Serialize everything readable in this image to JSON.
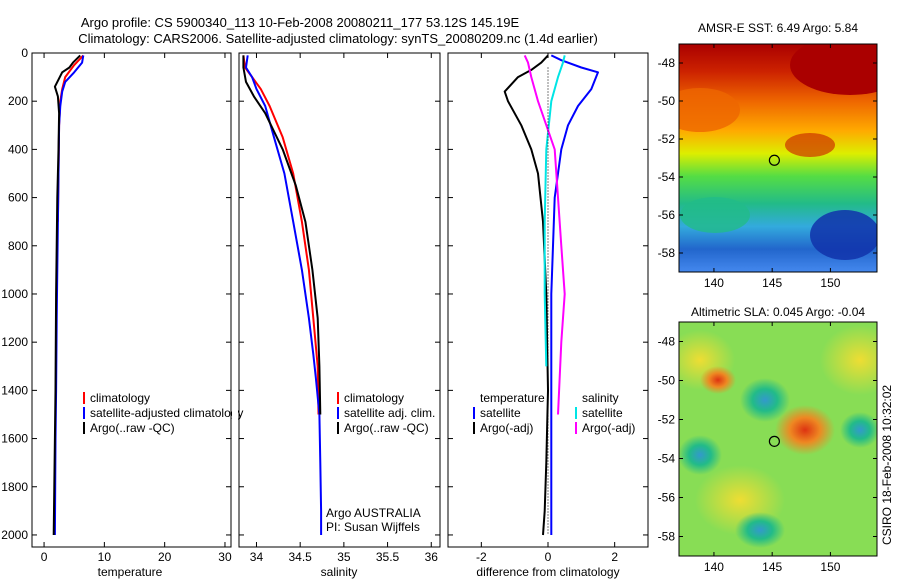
{
  "header": {
    "title1": "Argo profile: CS 5900340_113 10-Feb-2008 20080211_177 53.12S 145.19E",
    "title2": "Climatology: CARS2006. Satellite-adjusted climatology: synTS_20080209.nc (1.4d earlier)"
  },
  "credit": "CSIRO 18-Feb-2008 10:32:02",
  "colors": {
    "climatology": "#ff0000",
    "satellite": "#0000ff",
    "argo": "#000000",
    "salinity_satellite": "#00e5e5",
    "salinity_argo": "#ff00ff"
  },
  "chart_data": [
    {
      "id": "temperature",
      "type": "line",
      "xlabel": "temperature",
      "ylabel": "",
      "xlim": [
        -2,
        31
      ],
      "ylim": [
        2050,
        0
      ],
      "xticks": [
        0,
        10,
        20,
        30
      ],
      "yticks": [
        0,
        200,
        400,
        600,
        800,
        1000,
        1200,
        1400,
        1600,
        1800,
        2000
      ],
      "legend": {
        "placement": "lower-middle",
        "entries": [
          "climatology",
          "satellite-adjusted climatology",
          "Argo(..raw -QC)"
        ]
      },
      "series": [
        {
          "name": "climatology",
          "color": "#ff0000",
          "x": [
            6.5,
            5.0,
            3.5,
            3.0,
            2.7,
            2.5,
            2.4,
            2.3
          ],
          "y": [
            10,
            50,
            100,
            150,
            200,
            300,
            500,
            700
          ]
        },
        {
          "name": "satellite-adjusted climatology",
          "color": "#0000ff",
          "x": [
            6.5,
            6.3,
            5.0,
            3.5,
            3.0,
            2.7,
            2.5,
            2.4,
            2.3,
            2.2,
            2.1,
            2.0,
            1.9,
            1.85,
            1.8
          ],
          "y": [
            10,
            40,
            80,
            120,
            160,
            220,
            300,
            500,
            700,
            900,
            1100,
            1400,
            1600,
            1800,
            2000
          ]
        },
        {
          "name": "Argo(..raw -QC)",
          "color": "#000000",
          "x": [
            6.0,
            4.8,
            4.2,
            3.0,
            1.8,
            2.3,
            2.5,
            2.4,
            2.2,
            2.1,
            2.0,
            1.9,
            1.8,
            1.7,
            1.6
          ],
          "y": [
            10,
            40,
            60,
            80,
            140,
            180,
            250,
            400,
            600,
            800,
            1000,
            1400,
            1600,
            1800,
            2000
          ]
        }
      ]
    },
    {
      "id": "salinity",
      "type": "line",
      "xlabel": "salinity",
      "ylabel": "",
      "xlim": [
        33.8,
        36.1
      ],
      "ylim": [
        2050,
        0
      ],
      "xticks": [
        34,
        34.5,
        35,
        35.5,
        36
      ],
      "xticklabels": [
        "34",
        "34.5",
        "35",
        "35.5",
        "36"
      ],
      "legend": {
        "placement": "lower-right",
        "entries": [
          "climatology",
          "satellite adj. clim.",
          "Argo(..raw -QC)"
        ]
      },
      "annotations": [
        "Argo AUSTRALIA",
        "PI: Susan Wijffels"
      ],
      "series": [
        {
          "name": "climatology",
          "color": "#ff0000",
          "x": [
            33.85,
            33.87,
            33.95,
            34.05,
            34.15,
            34.3,
            34.42,
            34.52,
            34.6,
            34.65,
            34.7,
            34.71
          ],
          "y": [
            10,
            60,
            100,
            150,
            220,
            350,
            500,
            700,
            900,
            1100,
            1300,
            1500
          ]
        },
        {
          "name": "satellite adj. clim.",
          "color": "#0000ff",
          "x": [
            33.9,
            33.88,
            33.95,
            34.0,
            34.1,
            34.2,
            34.32,
            34.42,
            34.52,
            34.6,
            34.65,
            34.68,
            34.72,
            34.73,
            34.74,
            34.74
          ],
          "y": [
            10,
            60,
            100,
            150,
            220,
            350,
            500,
            700,
            900,
            1100,
            1250,
            1350,
            1500,
            1700,
            1900,
            2000
          ]
        },
        {
          "name": "Argo(..raw -QC)",
          "color": "#000000",
          "x": [
            33.85,
            33.85,
            33.88,
            33.97,
            34.1,
            34.3,
            34.45,
            34.56,
            34.64,
            34.7,
            34.72,
            34.73
          ],
          "y": [
            10,
            60,
            120,
            180,
            250,
            400,
            550,
            700,
            900,
            1100,
            1300,
            1500
          ]
        }
      ]
    },
    {
      "id": "difference",
      "type": "line",
      "xlabel": "difference from climatology",
      "ylabel": "",
      "xlim": [
        -3,
        3
      ],
      "ylim": [
        2050,
        0
      ],
      "xticks": [
        -2,
        0,
        2
      ],
      "legend": {
        "placement": "lower",
        "entries": [
          "temperature",
          "satellite",
          "Argo(-adj)",
          "salinity",
          "satellite",
          "Argo(-adj)"
        ]
      },
      "series": [
        {
          "name": "temperature satellite",
          "color": "#0000ff",
          "x": [
            0.1,
            0.4,
            1.0,
            1.5,
            1.3,
            0.9,
            0.6,
            0.4,
            0.2,
            0.1,
            0.1,
            0.1,
            0.1
          ],
          "y": [
            10,
            30,
            60,
            80,
            150,
            220,
            300,
            400,
            600,
            1000,
            1400,
            1800,
            2000
          ]
        },
        {
          "name": "temperature Argo(-adj)",
          "color": "#000000",
          "x": [
            0.0,
            -0.2,
            -0.5,
            -0.9,
            -1.3,
            -1.2,
            -0.8,
            -0.5,
            -0.3,
            -0.15,
            -0.05,
            0.0,
            -0.05,
            -0.1,
            -0.15
          ],
          "y": [
            10,
            40,
            70,
            100,
            160,
            200,
            300,
            400,
            500,
            700,
            1000,
            1400,
            1700,
            1900,
            2000
          ]
        },
        {
          "name": "salinity satellite",
          "color": "#00e5e5",
          "x": [
            0.5,
            0.45,
            0.3,
            0.1,
            -0.05,
            -0.1,
            -0.1,
            -0.05
          ],
          "y": [
            10,
            40,
            100,
            200,
            400,
            700,
            1000,
            1300
          ]
        },
        {
          "name": "salinity Argo(-adj)",
          "color": "#ff00ff",
          "x": [
            -0.7,
            -0.6,
            -0.5,
            -0.3,
            0.2,
            0.3,
            0.4,
            0.5,
            0.4,
            0.3
          ],
          "y": [
            10,
            40,
            100,
            200,
            400,
            600,
            800,
            1000,
            1200,
            1500
          ]
        }
      ]
    },
    {
      "id": "sst-map",
      "type": "heatmap",
      "title": "AMSR-E SST: 6.49 Argo: 5.84",
      "xlim": [
        137,
        154
      ],
      "ylim": [
        -59,
        -47
      ],
      "xticks": [
        140,
        145,
        150
      ],
      "yticks": [
        -48,
        -50,
        -52,
        -54,
        -56,
        -58
      ],
      "marker": {
        "lon": 145.19,
        "lat": -53.12
      }
    },
    {
      "id": "sla-map",
      "type": "heatmap",
      "title": "Altimetric SLA: 0.045 Argo: -0.04",
      "xlim": [
        137,
        154
      ],
      "ylim": [
        -59,
        -47
      ],
      "xticks": [
        140,
        145,
        150
      ],
      "yticks": [
        -48,
        -50,
        -52,
        -54,
        -56,
        -58
      ],
      "marker": {
        "lon": 145.19,
        "lat": -53.12
      }
    }
  ]
}
